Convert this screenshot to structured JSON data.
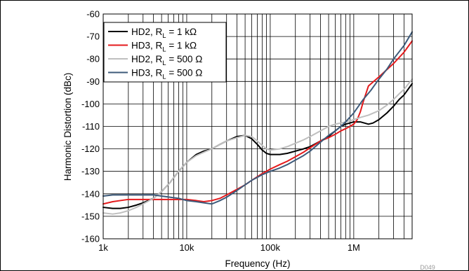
{
  "chart_data": {
    "type": "line",
    "title": "",
    "xlabel": "Frequency (Hz)",
    "ylabel": "Harmonic Distortion (dBc)",
    "x_scale": "log",
    "xlim": [
      1000,
      5000000
    ],
    "ylim": [
      -160,
      -60
    ],
    "y_ticks": [
      -60,
      -70,
      -80,
      -90,
      -100,
      -110,
      -120,
      -130,
      -140,
      -150,
      -160
    ],
    "x_ticks": [
      {
        "value": 1000,
        "label": "1k"
      },
      {
        "value": 10000,
        "label": "10k"
      },
      {
        "value": 100000,
        "label": "100k"
      },
      {
        "value": 1000000,
        "label": "1M"
      }
    ],
    "grid": true,
    "legend_position": "top-left",
    "figure_id": "D049",
    "series": [
      {
        "name": "HD2, R_L = 1 kΩ",
        "label_main": "HD2, R",
        "label_sub": "L",
        "label_tail": " = 1 kΩ",
        "color": "#000000",
        "x": [
          1000,
          1300,
          1600,
          2000,
          2500,
          3000,
          4000,
          5000,
          6300,
          8000,
          10000,
          13000,
          16000,
          20000,
          25000,
          30000,
          40000,
          50000,
          60000,
          70000,
          80000,
          90000,
          100000,
          130000,
          160000,
          200000,
          250000,
          300000,
          400000,
          500000,
          600000,
          700000,
          800000,
          1000000,
          1200000,
          1500000,
          1700000,
          2000000,
          2500000,
          3000000,
          3500000,
          4000000,
          5000000
        ],
        "y": [
          -146,
          -146.5,
          -146.5,
          -146,
          -145,
          -144,
          -142,
          -139,
          -135,
          -130,
          -126,
          -122.5,
          -121,
          -120,
          -118,
          -116.5,
          -114.5,
          -114,
          -115.5,
          -118,
          -120.5,
          -122,
          -122.5,
          -122.5,
          -122,
          -121,
          -120,
          -119,
          -116.5,
          -114.5,
          -112,
          -110,
          -109,
          -108,
          -108,
          -109,
          -108.5,
          -107,
          -104,
          -101,
          -98,
          -96,
          -91
        ]
      },
      {
        "name": "HD3, R_L = 1 kΩ",
        "label_main": "HD3, R",
        "label_sub": "L",
        "label_tail": " = 1 kΩ",
        "color": "#e41a1c",
        "x": [
          1000,
          1300,
          1600,
          2000,
          2500,
          3000,
          4000,
          5000,
          6300,
          8000,
          10000,
          13000,
          16000,
          20000,
          25000,
          30000,
          40000,
          50000,
          60000,
          80000,
          100000,
          130000,
          160000,
          200000,
          250000,
          300000,
          400000,
          500000,
          600000,
          700000,
          800000,
          900000,
          1000000,
          1100000,
          1200000,
          1300000,
          1500000,
          2000000,
          3000000,
          4000000,
          5000000
        ],
        "y": [
          -144.5,
          -143.5,
          -143,
          -142.5,
          -142.5,
          -142.5,
          -142.5,
          -142.5,
          -142.5,
          -142.5,
          -142.5,
          -143,
          -143.5,
          -143,
          -142,
          -140.5,
          -138,
          -136,
          -134,
          -131,
          -129,
          -127,
          -125.5,
          -123.5,
          -121.5,
          -119.5,
          -116.5,
          -115,
          -113.5,
          -112,
          -111,
          -110,
          -109,
          -107,
          -103.5,
          -99,
          -92,
          -88,
          -82,
          -77,
          -72
        ]
      },
      {
        "name": "HD2, R_L = 500 Ω",
        "label_main": "HD2, R",
        "label_sub": "L",
        "label_tail": " = 500 Ω",
        "color": "#bfbfbf",
        "x": [
          1000,
          1300,
          1600,
          2000,
          2500,
          3000,
          4000,
          5000,
          6300,
          8000,
          10000,
          13000,
          16000,
          20000,
          25000,
          30000,
          40000,
          50000,
          60000,
          70000,
          80000,
          90000,
          100000,
          130000,
          160000,
          200000,
          250000,
          300000,
          400000,
          500000,
          600000,
          700000,
          800000,
          1000000,
          1200000,
          1500000,
          2000000,
          2500000,
          3000000,
          3500000,
          4000000,
          5000000
        ],
        "y": [
          -148.5,
          -149,
          -148.5,
          -147.5,
          -146,
          -144.5,
          -142,
          -139,
          -135,
          -130,
          -126,
          -123,
          -121.5,
          -120,
          -118,
          -116.5,
          -115,
          -114,
          -114.5,
          -116.5,
          -118.5,
          -120,
          -120.5,
          -120,
          -119,
          -117.5,
          -116,
          -114.5,
          -112,
          -110,
          -109,
          -108.5,
          -108,
          -107,
          -106,
          -105,
          -103,
          -100.5,
          -98,
          -95.5,
          -93.5,
          -89
        ]
      },
      {
        "name": "HD3, R_L = 500 Ω",
        "label_main": "HD3, R",
        "label_sub": "L",
        "label_tail": " = 500 Ω",
        "color": "#3d5a7a",
        "x": [
          1000,
          1300,
          1600,
          2000,
          2500,
          3000,
          4000,
          5000,
          6300,
          8000,
          10000,
          13000,
          16000,
          20000,
          25000,
          30000,
          40000,
          50000,
          60000,
          80000,
          100000,
          130000,
          160000,
          200000,
          250000,
          300000,
          400000,
          500000,
          600000,
          700000,
          800000,
          1000000,
          1300000,
          1600000,
          2000000,
          2500000,
          3000000,
          4000000,
          5000000
        ],
        "y": [
          -141,
          -140.5,
          -140.5,
          -140.5,
          -140.5,
          -140.5,
          -140.5,
          -141,
          -141.5,
          -142,
          -143,
          -143.5,
          -144,
          -144.5,
          -143,
          -141.5,
          -138.5,
          -136,
          -134,
          -131.5,
          -130,
          -128.5,
          -127,
          -125,
          -123,
          -121,
          -117,
          -114,
          -112,
          -110,
          -108,
          -104,
          -98,
          -94,
          -89,
          -84.5,
          -80,
          -74,
          -68
        ]
      }
    ]
  }
}
